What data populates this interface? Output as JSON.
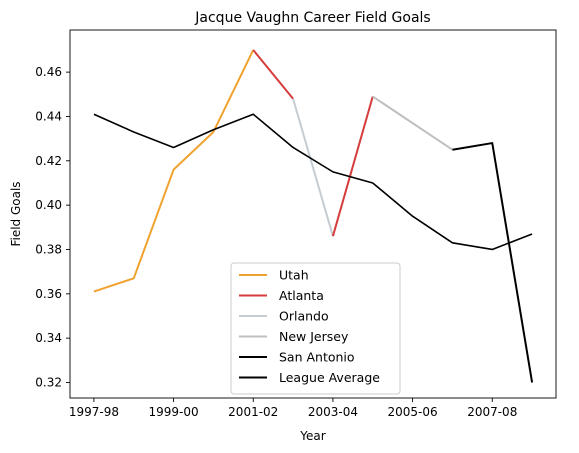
{
  "chart_data": {
    "type": "line",
    "title": "Jacque Vaughn Career Field Goals",
    "xlabel": "Year",
    "ylabel": "Field Goals",
    "x_tick_labels": [
      "1997-98",
      "1999-00",
      "2001-02",
      "2003-04",
      "2005-06",
      "2007-08"
    ],
    "x_tick_positions": [
      0,
      2,
      4,
      6,
      8,
      10
    ],
    "y_ticks": [
      "0.32",
      "0.34",
      "0.36",
      "0.38",
      "0.40",
      "0.42",
      "0.44",
      "0.46"
    ],
    "xlim": [
      -0.6,
      11.6
    ],
    "ylim": [
      0.313,
      0.479
    ],
    "grid": false,
    "legend_location": "lower center",
    "series": [
      {
        "name": "Utah",
        "color": "#f0a22e",
        "x": [
          0,
          1,
          2,
          3,
          4
        ],
        "y": [
          0.361,
          0.367,
          0.416,
          0.433,
          0.47
        ]
      },
      {
        "name": "Atlanta",
        "color": "#d63c3c",
        "x": [
          4,
          5
        ],
        "y": [
          0.47,
          0.448
        ]
      },
      {
        "name": "Orlando",
        "color": "#c5cdd3",
        "x": [
          5,
          6
        ],
        "y": [
          0.448,
          0.386
        ]
      },
      {
        "name": "Atlanta",
        "color": "#d63c3c",
        "x": [
          6,
          7
        ],
        "y": [
          0.386,
          0.449
        ],
        "in_legend": false
      },
      {
        "name": "New Jersey",
        "color": "#bfbfbf",
        "x": [
          7,
          8,
          9
        ],
        "y": [
          0.449,
          0.437,
          0.425
        ]
      },
      {
        "name": "San Antonio",
        "color": "#000000",
        "x": [
          9,
          10,
          11
        ],
        "y": [
          0.425,
          0.428,
          0.32
        ]
      },
      {
        "name": "League Average",
        "color": "#000000",
        "x": [
          0,
          1,
          2,
          3,
          4,
          5,
          6,
          7,
          8,
          9,
          10,
          11
        ],
        "y": [
          0.441,
          0.433,
          0.426,
          0.434,
          0.441,
          0.426,
          0.415,
          0.41,
          0.395,
          0.383,
          0.38,
          0.387
        ]
      }
    ]
  }
}
